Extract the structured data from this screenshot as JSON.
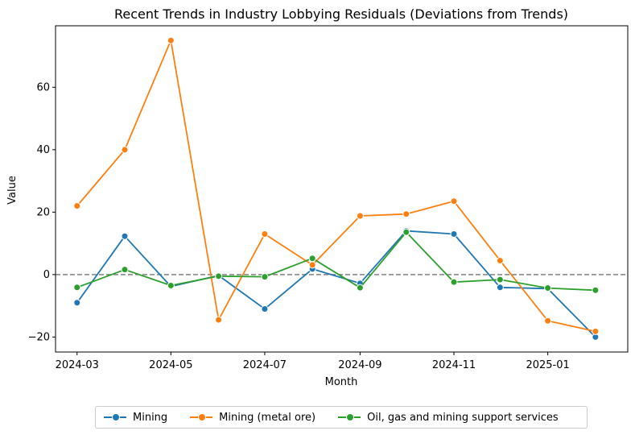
{
  "chart_data": {
    "type": "line",
    "title": "Recent Trends in Industry Lobbying Residuals (Deviations from Trends)",
    "xlabel": "Month",
    "ylabel": "Value",
    "x": [
      "2024-03-01",
      "2024-04-01",
      "2024-05-01",
      "2024-06-01",
      "2024-07-01",
      "2024-08-01",
      "2024-09-01",
      "2024-10-01",
      "2024-11-01",
      "2024-12-01",
      "2025-01-01",
      "2025-02-01"
    ],
    "x_tick_labels": [
      "2024-03",
      "2024-05",
      "2024-07",
      "2024-09",
      "2024-11",
      "2025-01"
    ],
    "y_ticks": [
      -20,
      0,
      20,
      40,
      60
    ],
    "ylim": [
      -24.8,
      79.7
    ],
    "xlim": [
      "2024-02-16",
      "2025-02-22"
    ],
    "reference_line": {
      "y": 0,
      "style": "dashed",
      "color": "#808080"
    },
    "series": [
      {
        "name": "Mining",
        "color": "#1f77b4",
        "values": [
          -9.0,
          12.3,
          -3.8,
          -0.3,
          -11.0,
          1.8,
          -2.8,
          14.0,
          13.0,
          -4.1,
          -4.5,
          -20.0
        ]
      },
      {
        "name": "Mining (metal ore)",
        "color": "#ff7f0e",
        "values": [
          22.0,
          40.0,
          75.0,
          -14.5,
          13.0,
          3.1,
          18.8,
          19.4,
          23.5,
          4.5,
          -14.8,
          -18.2
        ]
      },
      {
        "name": "Oil, gas and mining support services",
        "color": "#2ca02c",
        "values": [
          -4.1,
          1.6,
          -3.5,
          -0.5,
          -0.7,
          5.2,
          -4.2,
          13.6,
          -2.4,
          -1.6,
          -4.3,
          -5.0
        ]
      }
    ],
    "legend_position": "bottom-center",
    "grid": false
  }
}
